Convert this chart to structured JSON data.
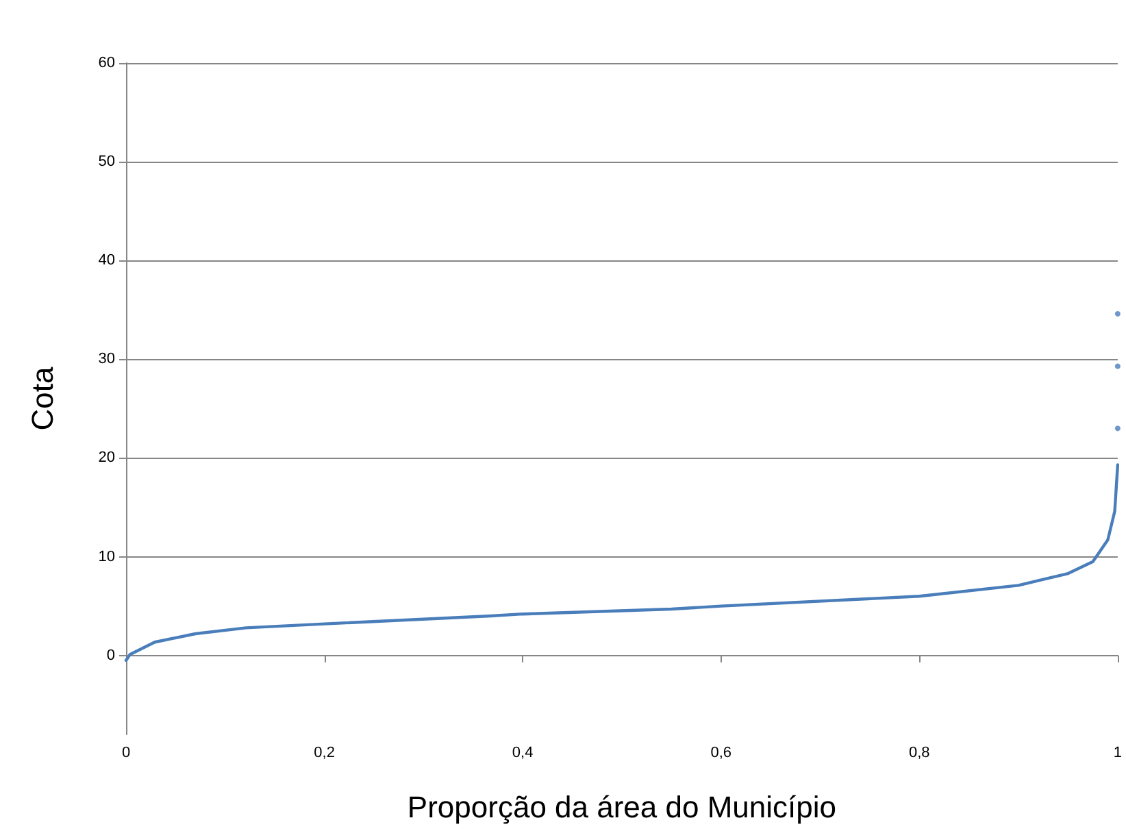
{
  "chart_data": {
    "type": "line",
    "xlabel": "Proporção da área do Município",
    "ylabel": "Cota",
    "xlim": [
      0,
      1
    ],
    "xticks": [
      0,
      {
        "value": 0.2,
        "label": "0,2"
      },
      {
        "value": 0.4,
        "label": "0,4"
      },
      {
        "value": 0.6,
        "label": "0,6"
      },
      {
        "value": 0.8,
        "label": "0,8"
      },
      1
    ],
    "ylim": [
      -8,
      60
    ],
    "yticks": [
      0,
      10,
      20,
      30,
      40,
      50,
      60
    ],
    "grid": "y",
    "marker": "none",
    "series": [
      {
        "color": "#4a7ebb",
        "x": [
          0,
          0.004,
          0.029,
          0.07,
          0.121,
          0.2,
          0.368,
          0.4,
          0.55,
          0.6,
          0.8,
          0.9,
          0.95,
          0.975,
          0.99,
          0.997,
          1
        ],
        "values": [
          -0.5,
          0.1,
          1.35,
          2.2,
          2.8,
          3.2,
          4.0,
          4.2,
          4.7,
          5.0,
          6.0,
          7.1,
          8.3,
          9.5,
          11.7,
          14.6,
          19.3
        ]
      },
      {
        "type": "scatter",
        "marker": "circle",
        "color": "#4a7ebb",
        "x": [
          1,
          1,
          1
        ],
        "values": [
          23,
          29.3,
          34.6
        ]
      }
    ]
  }
}
